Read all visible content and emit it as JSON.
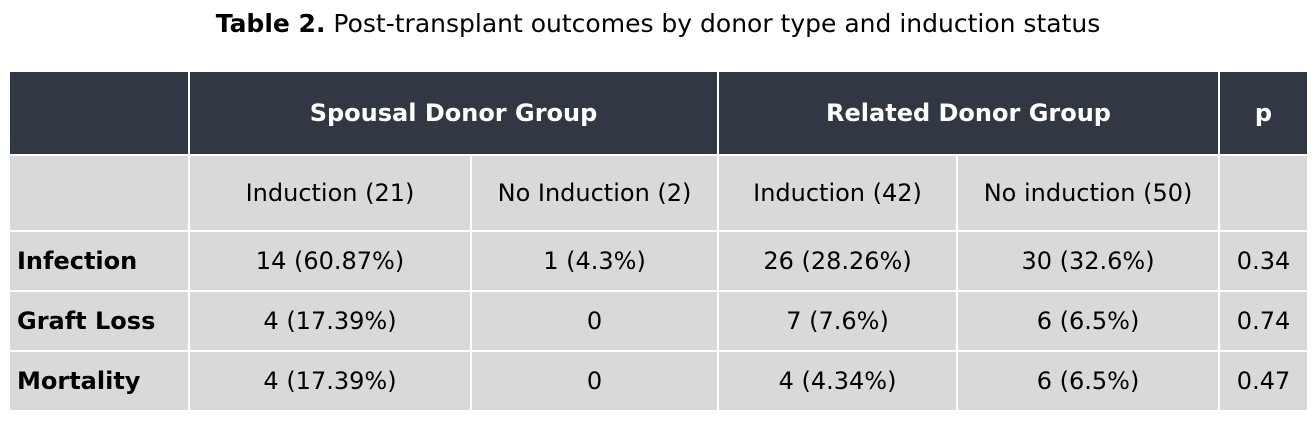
{
  "title": {
    "bold": "Table 2.",
    "text": "Post-transplant outcomes by donor type and induction status"
  },
  "table": {
    "groups": {
      "corner": "",
      "spousal": "Spousal Donor Group",
      "related": "Related Donor Group",
      "p": "p"
    },
    "subheaders": [
      "Induction (21)",
      "No Induction (2)",
      "Induction (42)",
      "No induction (50)"
    ],
    "rows": [
      {
        "label": "Infection",
        "values": [
          "14 (60.87%)",
          "1 (4.3%)",
          "26 (28.26%)",
          "30 (32.6%)"
        ],
        "p": "0.34"
      },
      {
        "label": "Graft Loss",
        "values": [
          "4 (17.39%)",
          "0",
          "7 (7.6%)",
          "6 (6.5%)"
        ],
        "p": "0.74"
      },
      {
        "label": "Mortality",
        "values": [
          "4 (17.39%)",
          "0",
          "4 (4.34%)",
          "6 (6.5%)"
        ],
        "p": "0.47"
      }
    ]
  },
  "colors": {
    "header_bg": "#323843",
    "header_text": "#ffffff",
    "cell_bg": "#d9d9d9"
  }
}
